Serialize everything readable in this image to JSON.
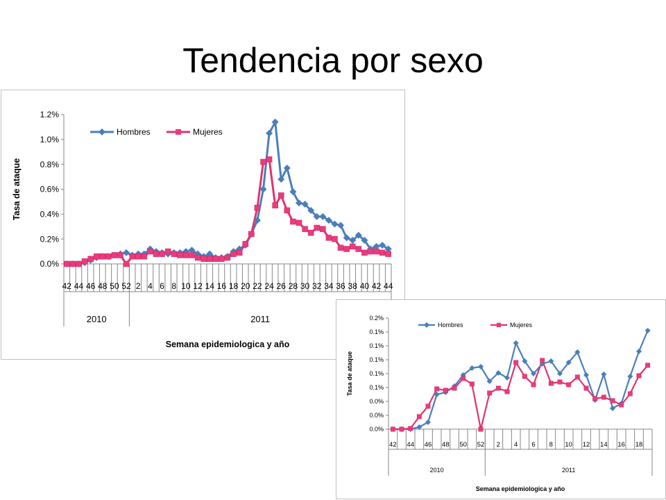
{
  "slide": {
    "title": "Tendencia por sexo"
  },
  "colors": {
    "hombres": "#4a7ebb",
    "mujeres": "#e0336c",
    "mujeres_marker": "#ec3a7e",
    "axis": "#868686"
  },
  "chart_data": [
    {
      "type": "line",
      "ylabel": "Tasa de ataque",
      "xlabel": "Semana epidemiologica  y año",
      "ylim": [
        0,
        1.2
      ],
      "ytick_values": [
        0,
        0.2,
        0.4,
        0.6,
        0.8,
        1.0,
        1.2
      ],
      "ytick_labels": [
        "0.0%",
        "0.2%",
        "0.4%",
        "0.6%",
        "0.8%",
        "1.0%",
        "1.2%"
      ],
      "x": [
        42,
        43,
        44,
        45,
        46,
        47,
        48,
        49,
        50,
        51,
        52,
        1,
        2,
        3,
        4,
        5,
        6,
        7,
        8,
        9,
        10,
        11,
        12,
        13,
        14,
        15,
        16,
        17,
        18,
        19,
        20,
        21,
        22,
        23,
        24,
        25,
        26,
        27,
        28,
        29,
        30,
        31,
        32,
        33,
        34,
        35,
        36,
        37,
        38,
        39,
        40,
        41,
        42,
        43,
        44
      ],
      "xtick_labels": [
        "42",
        "44",
        "46",
        "48",
        "50",
        "52",
        "2",
        "4",
        "6",
        "8",
        "10",
        "12",
        "14",
        "16",
        "18",
        "20",
        "22",
        "24",
        "26",
        "28",
        "30",
        "32",
        "34",
        "36",
        "38",
        "40",
        "42",
        "44"
      ],
      "year_groups": [
        {
          "label": "2010",
          "count": 11
        },
        {
          "label": "2011",
          "count": 44
        }
      ],
      "legend_position": "top-left",
      "series": [
        {
          "name": "Hombres",
          "values": [
            0.0,
            0.0,
            0.0,
            0.01,
            0.03,
            0.05,
            0.06,
            0.06,
            0.07,
            0.08,
            0.09,
            0.07,
            0.08,
            0.08,
            0.12,
            0.1,
            0.09,
            0.08,
            0.09,
            0.09,
            0.1,
            0.11,
            0.08,
            0.06,
            0.08,
            0.05,
            0.05,
            0.06,
            0.1,
            0.12,
            0.15,
            0.24,
            0.35,
            0.6,
            1.05,
            1.14,
            0.68,
            0.77,
            0.58,
            0.49,
            0.48,
            0.43,
            0.38,
            0.38,
            0.35,
            0.32,
            0.31,
            0.21,
            0.19,
            0.23,
            0.19,
            0.12,
            0.14,
            0.15,
            0.12
          ]
        },
        {
          "name": "Mujeres",
          "values": [
            0.0,
            0.0,
            0.0,
            0.02,
            0.04,
            0.06,
            0.06,
            0.06,
            0.07,
            0.07,
            0.0,
            0.06,
            0.06,
            0.06,
            0.1,
            0.08,
            0.08,
            0.1,
            0.08,
            0.07,
            0.07,
            0.07,
            0.05,
            0.04,
            0.04,
            0.04,
            0.04,
            0.05,
            0.08,
            0.09,
            0.16,
            0.24,
            0.45,
            0.82,
            0.84,
            0.47,
            0.55,
            0.43,
            0.34,
            0.33,
            0.28,
            0.25,
            0.29,
            0.28,
            0.21,
            0.2,
            0.13,
            0.12,
            0.14,
            0.12,
            0.09,
            0.1,
            0.1,
            0.09,
            0.08
          ]
        }
      ]
    },
    {
      "type": "line",
      "ylabel": "Tasa de ataque",
      "xlabel": "Semana epidemiologica  y año",
      "ylim": [
        0,
        0.16
      ],
      "ytick_values": [
        0,
        0.02,
        0.04,
        0.06,
        0.08,
        0.1,
        0.12,
        0.14,
        0.16
      ],
      "ytick_labels": [
        "0.0%",
        "0.0%",
        "0.0%",
        "0.1%",
        "0.1%",
        "0.1%",
        "0.1%",
        "0.1%",
        "0.2%"
      ],
      "x": [
        42,
        43,
        44,
        45,
        46,
        47,
        48,
        49,
        50,
        51,
        52,
        1,
        2,
        3,
        4,
        5,
        6,
        7,
        8,
        9,
        10,
        11,
        12,
        13,
        14,
        15,
        16,
        17,
        18,
        19
      ],
      "xtick_labels": [
        "42",
        "44",
        "46",
        "48",
        "50",
        "52",
        "2",
        "4",
        "6",
        "8",
        "10",
        "12",
        "14",
        "16",
        "18"
      ],
      "year_groups": [
        {
          "label": "2010",
          "count": 11
        },
        {
          "label": "2011",
          "count": 19
        }
      ],
      "legend_position": "top-center",
      "series": [
        {
          "name": "Hombres",
          "values": [
            0.0,
            0.0,
            0.0,
            0.003,
            0.01,
            0.05,
            0.053,
            0.062,
            0.078,
            0.088,
            0.09,
            0.069,
            0.081,
            0.074,
            0.124,
            0.098,
            0.08,
            0.094,
            0.098,
            0.08,
            0.096,
            0.111,
            0.078,
            0.042,
            0.079,
            0.03,
            0.037,
            0.076,
            0.112,
            0.142
          ]
        },
        {
          "name": "Mujeres",
          "values": [
            0.0,
            0.0,
            0.001,
            0.018,
            0.033,
            0.058,
            0.056,
            0.059,
            0.073,
            0.065,
            0.0,
            0.052,
            0.059,
            0.054,
            0.096,
            0.076,
            0.064,
            0.099,
            0.066,
            0.068,
            0.064,
            0.075,
            0.059,
            0.044,
            0.046,
            0.041,
            0.035,
            0.051,
            0.077,
            0.092
          ]
        }
      ]
    }
  ]
}
